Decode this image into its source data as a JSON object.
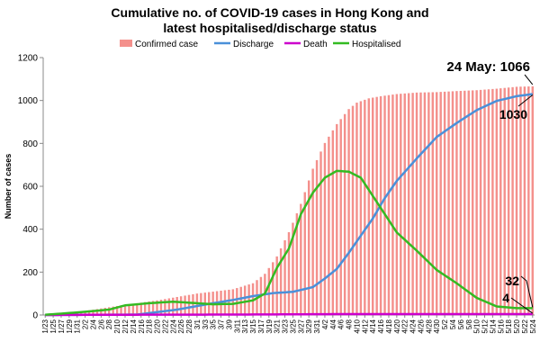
{
  "chart_data": {
    "type": "bar",
    "title_lines": [
      "Cumulative no. of COVID-19 cases in Hong Kong and",
      "latest hospitalised/discharge status"
    ],
    "ylabel": "Number of cases",
    "xlabel": "",
    "ylim": [
      0,
      1200
    ],
    "yticks": [
      0,
      200,
      400,
      600,
      800,
      1000,
      1200
    ],
    "grid": false,
    "legend_position": "top",
    "start_date": "2020-01-23",
    "x_tick_labels": [
      "1/23",
      "1/25",
      "1/27",
      "1/29",
      "1/31",
      "2/2",
      "2/4",
      "2/6",
      "2/8",
      "2/10",
      "2/12",
      "2/14",
      "2/16",
      "2/18",
      "2/20",
      "2/22",
      "2/24",
      "2/26",
      "2/28",
      "3/1",
      "3/3",
      "3/5",
      "3/7",
      "3/9",
      "3/11",
      "3/13",
      "3/15",
      "3/17",
      "3/19",
      "3/21",
      "3/23",
      "3/25",
      "3/27",
      "3/29",
      "3/31",
      "4/2",
      "4/4",
      "4/6",
      "4/8",
      "4/10",
      "4/12",
      "4/14",
      "4/16",
      "4/18",
      "4/20",
      "4/22",
      "4/24",
      "4/26",
      "4/28",
      "4/30",
      "5/2",
      "5/4",
      "5/6",
      "5/8",
      "5/10",
      "5/12",
      "5/14",
      "5/16",
      "5/18",
      "5/20",
      "5/22",
      "5/24"
    ],
    "series": [
      {
        "name": "Confirmed case",
        "kind": "bar",
        "color": "#f4908c",
        "anchors": [
          [
            "1/23",
            1
          ],
          [
            "1/31",
            13
          ],
          [
            "2/10",
            42
          ],
          [
            "2/20",
            68
          ],
          [
            "3/1",
            100
          ],
          [
            "3/10",
            120
          ],
          [
            "3/15",
            148
          ],
          [
            "3/18",
            192
          ],
          [
            "3/21",
            273
          ],
          [
            "3/24",
            386
          ],
          [
            "3/27",
            518
          ],
          [
            "3/30",
            682
          ],
          [
            "4/2",
            802
          ],
          [
            "4/5",
            890
          ],
          [
            "4/8",
            960
          ],
          [
            "4/10",
            990
          ],
          [
            "4/13",
            1010
          ],
          [
            "4/16",
            1020
          ],
          [
            "4/20",
            1030
          ],
          [
            "4/25",
            1037
          ],
          [
            "4/30",
            1039
          ],
          [
            "5/5",
            1044
          ],
          [
            "5/10",
            1048
          ],
          [
            "5/15",
            1055
          ],
          [
            "5/20",
            1064
          ],
          [
            "5/24",
            1066
          ]
        ]
      },
      {
        "name": "Discharge",
        "kind": "line",
        "color": "#4a90d9",
        "anchors": [
          [
            "1/23",
            0
          ],
          [
            "2/15",
            2
          ],
          [
            "2/25",
            25
          ],
          [
            "3/5",
            55
          ],
          [
            "3/10",
            70
          ],
          [
            "3/15",
            88
          ],
          [
            "3/20",
            102
          ],
          [
            "3/25",
            108
          ],
          [
            "3/30",
            130
          ],
          [
            "4/2",
            170
          ],
          [
            "4/5",
            215
          ],
          [
            "4/8",
            290
          ],
          [
            "4/11",
            370
          ],
          [
            "4/14",
            450
          ],
          [
            "4/17",
            545
          ],
          [
            "4/20",
            625
          ],
          [
            "4/25",
            730
          ],
          [
            "4/30",
            830
          ],
          [
            "5/5",
            895
          ],
          [
            "5/10",
            955
          ],
          [
            "5/15",
            998
          ],
          [
            "5/20",
            1020
          ],
          [
            "5/24",
            1030
          ]
        ]
      },
      {
        "name": "Death",
        "kind": "line",
        "color": "#cc00cc",
        "anchors": [
          [
            "1/23",
            0
          ],
          [
            "2/4",
            1
          ],
          [
            "3/10",
            2
          ],
          [
            "4/5",
            4
          ],
          [
            "5/24",
            4
          ]
        ]
      },
      {
        "name": "Hospitalised",
        "kind": "line",
        "color": "#33bb22",
        "anchors": [
          [
            "1/23",
            1
          ],
          [
            "1/31",
            12
          ],
          [
            "2/8",
            25
          ],
          [
            "2/12",
            45
          ],
          [
            "2/18",
            55
          ],
          [
            "2/24",
            62
          ],
          [
            "3/1",
            55
          ],
          [
            "3/5",
            50
          ],
          [
            "3/10",
            52
          ],
          [
            "3/15",
            68
          ],
          [
            "3/18",
            100
          ],
          [
            "3/21",
            220
          ],
          [
            "3/24",
            310
          ],
          [
            "3/27",
            470
          ],
          [
            "3/30",
            570
          ],
          [
            "4/2",
            640
          ],
          [
            "4/5",
            672
          ],
          [
            "4/8",
            668
          ],
          [
            "4/11",
            640
          ],
          [
            "4/14",
            555
          ],
          [
            "4/17",
            470
          ],
          [
            "4/20",
            385
          ],
          [
            "4/25",
            300
          ],
          [
            "4/30",
            210
          ],
          [
            "5/5",
            148
          ],
          [
            "5/10",
            80
          ],
          [
            "5/15",
            40
          ],
          [
            "5/20",
            32
          ],
          [
            "5/24",
            32
          ]
        ]
      }
    ],
    "annotations": [
      {
        "text": "24 May: 1066",
        "size": 15
      },
      {
        "text": "1030",
        "size": 14
      },
      {
        "text": "32",
        "size": 14
      },
      {
        "text": "4",
        "size": 14
      }
    ]
  }
}
